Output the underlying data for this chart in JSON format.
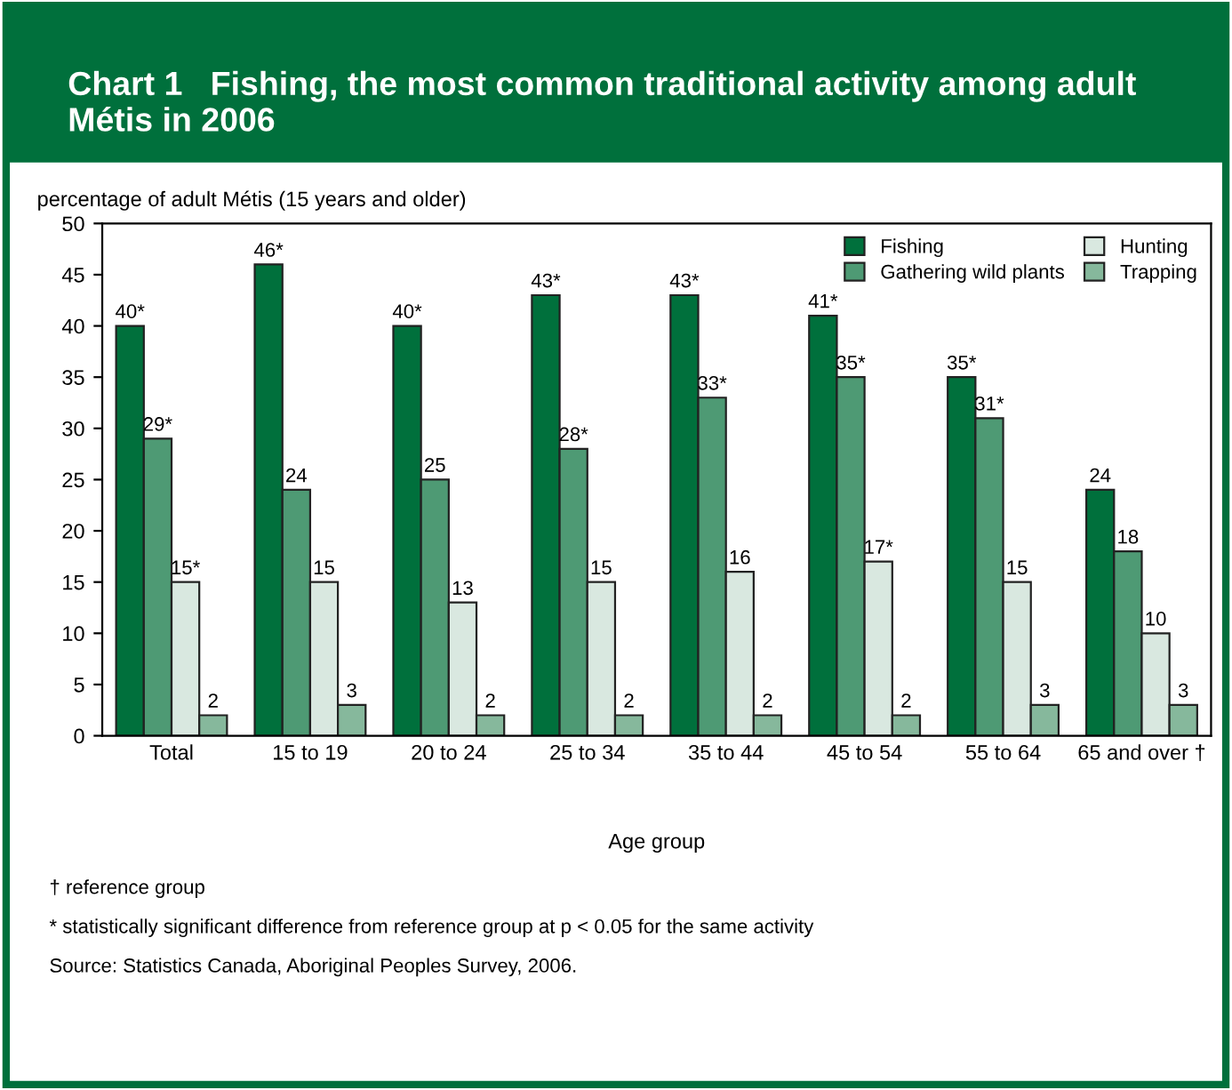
{
  "chart_data": {
    "type": "bar",
    "title": "Chart 1   Fishing, the most common traditional activity among adult Métis in 2006",
    "ylabel": "percentage of adult Métis (15 years and older)",
    "xlabel": "Age group",
    "categories": [
      "Total",
      "15 to 19",
      "20 to 24",
      "25 to 34",
      "35 to 44",
      "45 to 54",
      "55 to 64",
      "65 and over †"
    ],
    "series": [
      {
        "name": "Fishing",
        "color": "#00703c",
        "values": [
          40,
          46,
          40,
          43,
          43,
          41,
          35,
          24
        ],
        "value_labels": [
          "40*",
          "46*",
          "40*",
          "43*",
          "43*",
          "41*",
          "35*",
          "24"
        ]
      },
      {
        "name": "Gathering wild plants",
        "color": "#4e9a74",
        "values": [
          29,
          24,
          25,
          28,
          33,
          35,
          31,
          18
        ],
        "value_labels": [
          "29*",
          "24",
          "25",
          "28*",
          "33*",
          "35*",
          "31*",
          "18"
        ]
      },
      {
        "name": "Hunting",
        "color": "#d9e8e0",
        "values": [
          15,
          15,
          13,
          15,
          16,
          17,
          15,
          10
        ],
        "value_labels": [
          "15*",
          "15",
          "13",
          "15",
          "16",
          "17*",
          "15",
          "10"
        ]
      },
      {
        "name": "Trapping",
        "color": "#86b89c",
        "values": [
          2,
          3,
          2,
          2,
          2,
          2,
          3,
          3
        ],
        "value_labels": [
          "2",
          "3",
          "2",
          "2",
          "2",
          "2",
          "3",
          "3"
        ]
      }
    ],
    "ylim": [
      0,
      50
    ],
    "yticks": [
      0,
      5,
      10,
      15,
      20,
      25,
      30,
      35,
      40,
      45,
      50
    ],
    "grid": false,
    "legend": "top right",
    "annotations": [
      "† reference group",
      "* statistically significant difference from reference group at p < 0.05 for the same activity",
      "Source: Statistics Canada, Aboriginal Peoples Survey, 2006."
    ]
  }
}
